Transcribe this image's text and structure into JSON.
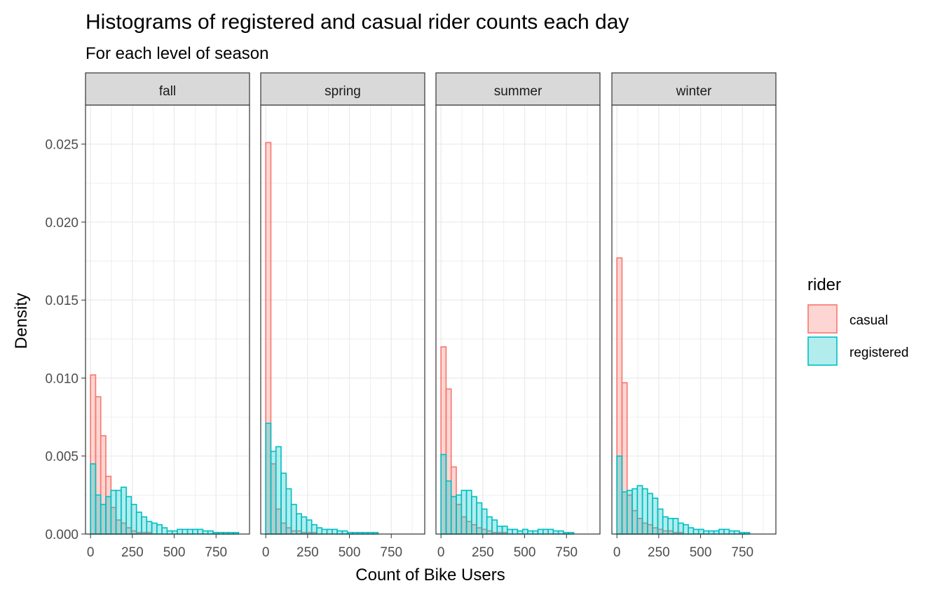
{
  "chart_data": {
    "type": "histogram",
    "title": "Histograms of registered and casual rider counts each day",
    "subtitle": "For each level of season",
    "xlabel": "Count of Bike Users",
    "ylabel": "Density",
    "x_ticks": [
      "0",
      "250",
      "500",
      "750"
    ],
    "y_ticks": [
      "0.000",
      "0.005",
      "0.010",
      "0.015",
      "0.020",
      "0.025"
    ],
    "x_tick_values": [
      0,
      250,
      500,
      750
    ],
    "y_tick_values": [
      0.0,
      0.005,
      0.01,
      0.015,
      0.02,
      0.025
    ],
    "xlim": [
      -30,
      950
    ],
    "ylim": [
      0,
      0.0275
    ],
    "bins": 30,
    "bin_width": 30.5,
    "bin_start": 0,
    "grid": true,
    "legend": {
      "title": "rider",
      "position": "right",
      "entries": [
        {
          "key": "casual",
          "label": "casual"
        },
        {
          "key": "registered",
          "label": "registered"
        }
      ]
    },
    "colors": {
      "casual_stroke": "#f8766d",
      "casual_fill": "#f8766d",
      "registered_stroke": "#00bfc4",
      "registered_fill": "#00bfc4",
      "strip_bg": "#d9d9d9",
      "grid": "#ebebeb",
      "panel_border": "#333333"
    },
    "panels": [
      {
        "name": "fall",
        "casual": [
          0.0102,
          0.0088,
          0.0063,
          0.0037,
          0.0017,
          0.0009,
          0.0007,
          0.0004,
          0.0002,
          0.0001,
          0.0001,
          0.0001,
          0.0,
          0.0,
          0.0,
          0.0,
          0.0,
          0.0,
          0.0,
          0.0,
          0.0,
          0.0,
          0.0,
          0.0,
          0.0,
          0.0,
          0.0,
          0.0,
          0.0,
          0.0
        ],
        "registered": [
          0.0045,
          0.0025,
          0.0019,
          0.0024,
          0.0028,
          0.0028,
          0.003,
          0.0024,
          0.0019,
          0.0014,
          0.0011,
          0.0008,
          0.0007,
          0.0006,
          0.0004,
          0.0002,
          0.0002,
          0.0003,
          0.0003,
          0.0003,
          0.0003,
          0.0003,
          0.0002,
          0.0002,
          0.0001,
          0.0001,
          0.0001,
          0.0001,
          0.0001,
          0.0
        ]
      },
      {
        "name": "spring",
        "casual": [
          0.0251,
          0.0045,
          0.0016,
          0.0007,
          0.0004,
          0.0002,
          0.0002,
          0.0001,
          0.0001,
          0.0001,
          0.0,
          0.0,
          0.0,
          0.0,
          0.0,
          0.0,
          0.0,
          0.0,
          0.0,
          0.0,
          0.0,
          0.0,
          0.0,
          0.0,
          0.0,
          0.0,
          0.0,
          0.0,
          0.0,
          0.0
        ],
        "registered": [
          0.0071,
          0.0053,
          0.0056,
          0.0039,
          0.0029,
          0.0019,
          0.0013,
          0.0011,
          0.0009,
          0.0006,
          0.0004,
          0.0003,
          0.0003,
          0.0003,
          0.0002,
          0.0002,
          0.0001,
          0.0001,
          0.0001,
          0.0001,
          0.0001,
          0.0001,
          0.0,
          0.0,
          0.0,
          0.0,
          0.0,
          0.0,
          0.0,
          0.0
        ]
      },
      {
        "name": "summer",
        "casual": [
          0.012,
          0.0093,
          0.0043,
          0.0019,
          0.0011,
          0.0008,
          0.0006,
          0.0004,
          0.0003,
          0.0002,
          0.0001,
          0.0001,
          0.0001,
          0.0,
          0.0,
          0.0,
          0.0,
          0.0,
          0.0,
          0.0,
          0.0,
          0.0,
          0.0,
          0.0,
          0.0,
          0.0,
          0.0,
          0.0,
          0.0,
          0.0
        ],
        "registered": [
          0.0051,
          0.0034,
          0.0024,
          0.0025,
          0.0028,
          0.0028,
          0.0024,
          0.002,
          0.0016,
          0.0011,
          0.0009,
          0.0005,
          0.0005,
          0.0003,
          0.0003,
          0.0002,
          0.0003,
          0.0002,
          0.0002,
          0.0003,
          0.0003,
          0.0003,
          0.0002,
          0.0002,
          0.0001,
          0.0001,
          0.0,
          0.0,
          0.0,
          0.0
        ]
      },
      {
        "name": "winter",
        "casual": [
          0.0177,
          0.0097,
          0.0025,
          0.0015,
          0.001,
          0.0007,
          0.0006,
          0.0004,
          0.0003,
          0.0002,
          0.0002,
          0.0001,
          0.0001,
          0.0,
          0.0,
          0.0,
          0.0,
          0.0,
          0.0,
          0.0,
          0.0,
          0.0,
          0.0,
          0.0,
          0.0,
          0.0,
          0.0,
          0.0,
          0.0,
          0.0
        ],
        "registered": [
          0.005,
          0.0027,
          0.0028,
          0.0029,
          0.0031,
          0.0029,
          0.0026,
          0.0023,
          0.0016,
          0.0011,
          0.001,
          0.001,
          0.0007,
          0.0006,
          0.0004,
          0.0003,
          0.0003,
          0.0002,
          0.0002,
          0.0002,
          0.0003,
          0.0003,
          0.0002,
          0.0002,
          0.0001,
          0.0001,
          0.0,
          0.0,
          0.0,
          0.0
        ]
      }
    ]
  }
}
